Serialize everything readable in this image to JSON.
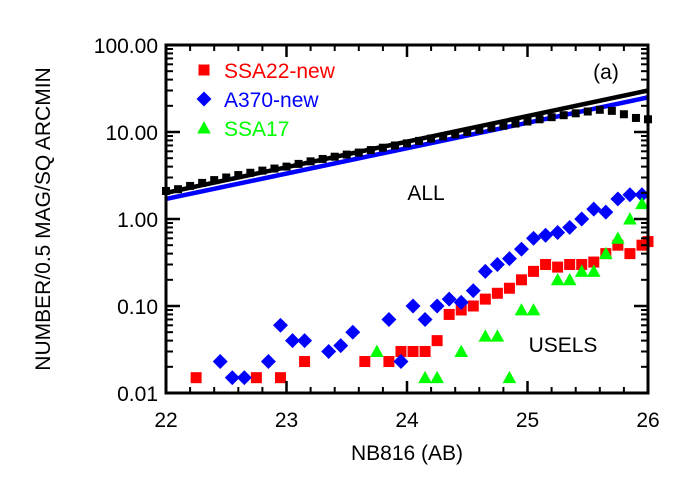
{
  "chart_data": {
    "type": "scatter",
    "xlabel": "NB816 (AB)",
    "ylabel": "NUMBER/0.5 MAG/SQ ARCMIN",
    "xlim": [
      22,
      26
    ],
    "ylim": [
      0.01,
      100
    ],
    "y_scale": "log",
    "x_ticks": [
      "22",
      "23",
      "24",
      "25",
      "26"
    ],
    "x_tick_values": [
      22,
      23,
      24,
      25,
      26
    ],
    "y_ticks": [
      "0.01",
      "0.10",
      "1.00",
      "10.00",
      "100.00"
    ],
    "y_tick_values": [
      0.01,
      0.1,
      1,
      10,
      100
    ],
    "panel_label": "(a)",
    "annotations": [
      "ALL",
      "USELS"
    ],
    "legend_position": "top-left",
    "series": [
      {
        "name": "SSA22-new",
        "marker": "square",
        "color": "#ff0000",
        "legend": true,
        "points": [
          [
            22.25,
            0.015
          ],
          [
            22.75,
            0.015
          ],
          [
            22.95,
            0.015
          ],
          [
            23.15,
            0.023
          ],
          [
            23.65,
            0.023
          ],
          [
            23.85,
            0.023
          ],
          [
            23.95,
            0.03
          ],
          [
            24.05,
            0.03
          ],
          [
            24.15,
            0.03
          ],
          [
            24.25,
            0.04
          ],
          [
            24.35,
            0.08
          ],
          [
            24.45,
            0.09
          ],
          [
            24.55,
            0.1
          ],
          [
            24.65,
            0.12
          ],
          [
            24.75,
            0.14
          ],
          [
            24.85,
            0.16
          ],
          [
            24.95,
            0.2
          ],
          [
            25.05,
            0.25
          ],
          [
            25.15,
            0.3
          ],
          [
            25.25,
            0.28
          ],
          [
            25.35,
            0.3
          ],
          [
            25.45,
            0.3
          ],
          [
            25.55,
            0.32
          ],
          [
            25.65,
            0.4
          ],
          [
            25.75,
            0.5
          ],
          [
            25.85,
            0.4
          ],
          [
            25.95,
            0.5
          ],
          [
            26.0,
            0.55
          ]
        ]
      },
      {
        "name": "A370-new",
        "marker": "diamond",
        "color": "#0000ff",
        "legend": true,
        "points": [
          [
            22.45,
            0.023
          ],
          [
            22.55,
            0.015
          ],
          [
            22.65,
            0.015
          ],
          [
            22.85,
            0.023
          ],
          [
            22.95,
            0.06
          ],
          [
            23.05,
            0.04
          ],
          [
            23.15,
            0.04
          ],
          [
            23.35,
            0.03
          ],
          [
            23.45,
            0.035
          ],
          [
            23.55,
            0.05
          ],
          [
            23.85,
            0.07
          ],
          [
            23.95,
            0.023
          ],
          [
            24.05,
            0.1
          ],
          [
            24.15,
            0.07
          ],
          [
            24.25,
            0.1
          ],
          [
            24.35,
            0.12
          ],
          [
            24.45,
            0.11
          ],
          [
            24.55,
            0.15
          ],
          [
            24.65,
            0.25
          ],
          [
            24.75,
            0.3
          ],
          [
            24.85,
            0.35
          ],
          [
            24.95,
            0.45
          ],
          [
            25.05,
            0.6
          ],
          [
            25.15,
            0.65
          ],
          [
            25.25,
            0.7
          ],
          [
            25.35,
            0.8
          ],
          [
            25.45,
            1.0
          ],
          [
            25.55,
            1.3
          ],
          [
            25.65,
            1.2
          ],
          [
            25.75,
            1.7
          ],
          [
            25.85,
            1.9
          ],
          [
            25.95,
            1.9
          ]
        ]
      },
      {
        "name": "SSA17",
        "marker": "triangle",
        "color": "#00ff00",
        "legend": true,
        "points": [
          [
            23.75,
            0.03
          ],
          [
            24.15,
            0.015
          ],
          [
            24.25,
            0.015
          ],
          [
            24.45,
            0.03
          ],
          [
            24.65,
            0.045
          ],
          [
            24.75,
            0.045
          ],
          [
            24.85,
            0.015
          ],
          [
            24.95,
            0.09
          ],
          [
            25.05,
            0.09
          ],
          [
            25.25,
            0.2
          ],
          [
            25.35,
            0.2
          ],
          [
            25.45,
            0.25
          ],
          [
            25.55,
            0.25
          ],
          [
            25.65,
            0.4
          ],
          [
            25.75,
            0.6
          ],
          [
            25.85,
            1.0
          ],
          [
            25.95,
            1.5
          ]
        ]
      },
      {
        "name": "ALL",
        "marker": "square",
        "color": "#000000",
        "legend": false,
        "points": [
          [
            22.0,
            2.1
          ],
          [
            22.1,
            2.2
          ],
          [
            22.2,
            2.4
          ],
          [
            22.3,
            2.6
          ],
          [
            22.4,
            2.8
          ],
          [
            22.5,
            3.0
          ],
          [
            22.6,
            3.2
          ],
          [
            22.7,
            3.4
          ],
          [
            22.8,
            3.6
          ],
          [
            22.9,
            3.8
          ],
          [
            23.0,
            4.0
          ],
          [
            23.1,
            4.3
          ],
          [
            23.2,
            4.6
          ],
          [
            23.3,
            4.9
          ],
          [
            23.4,
            5.2
          ],
          [
            23.5,
            5.5
          ],
          [
            23.6,
            5.8
          ],
          [
            23.7,
            6.2
          ],
          [
            23.8,
            6.6
          ],
          [
            23.9,
            7.0
          ],
          [
            24.0,
            7.4
          ],
          [
            24.1,
            7.9
          ],
          [
            24.2,
            8.4
          ],
          [
            24.3,
            8.9
          ],
          [
            24.4,
            9.4
          ],
          [
            24.5,
            10.0
          ],
          [
            24.6,
            10.6
          ],
          [
            24.7,
            11.2
          ],
          [
            24.8,
            11.8
          ],
          [
            24.9,
            12.5
          ],
          [
            25.0,
            13.2
          ],
          [
            25.1,
            14.0
          ],
          [
            25.2,
            14.8
          ],
          [
            25.3,
            15.6
          ],
          [
            25.4,
            16.4
          ],
          [
            25.5,
            17.2
          ],
          [
            25.6,
            18.0
          ],
          [
            25.7,
            17.5
          ],
          [
            25.8,
            16.0
          ],
          [
            25.9,
            14.5
          ],
          [
            26.0,
            14.0
          ]
        ]
      }
    ],
    "lines": [
      {
        "color": "#000000",
        "points": [
          [
            22.0,
            2.0
          ],
          [
            26.0,
            30.0
          ]
        ]
      },
      {
        "color": "#0000ff",
        "points": [
          [
            22.0,
            1.7
          ],
          [
            26.0,
            25.0
          ]
        ]
      }
    ]
  }
}
